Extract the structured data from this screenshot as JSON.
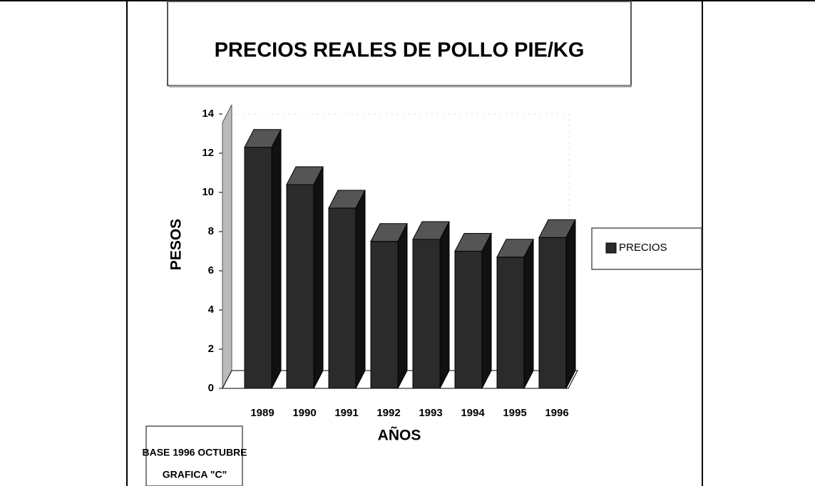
{
  "chart_data": {
    "type": "bar3d",
    "title": "PRECIOS REALES DE POLLO PIE/KG",
    "y_label": "PESOS",
    "x_label": "AÑOS",
    "categories": [
      "1989",
      "1990",
      "1991",
      "1992",
      "1993",
      "1994",
      "1995",
      "1996"
    ],
    "series": [
      {
        "name": "PRECIOS",
        "color": "#2b2b2b",
        "values": [
          12.3,
          10.4,
          9.2,
          7.5,
          7.6,
          7.0,
          6.7,
          7.7
        ]
      }
    ],
    "ylim": [
      0,
      14
    ],
    "yticks": [
      0,
      2,
      4,
      6,
      8,
      10,
      12,
      14
    ],
    "grid": false,
    "legend": "right",
    "notes": [
      "BASE 1996 OCTUBRE",
      "GRAFICA \"C\""
    ]
  }
}
